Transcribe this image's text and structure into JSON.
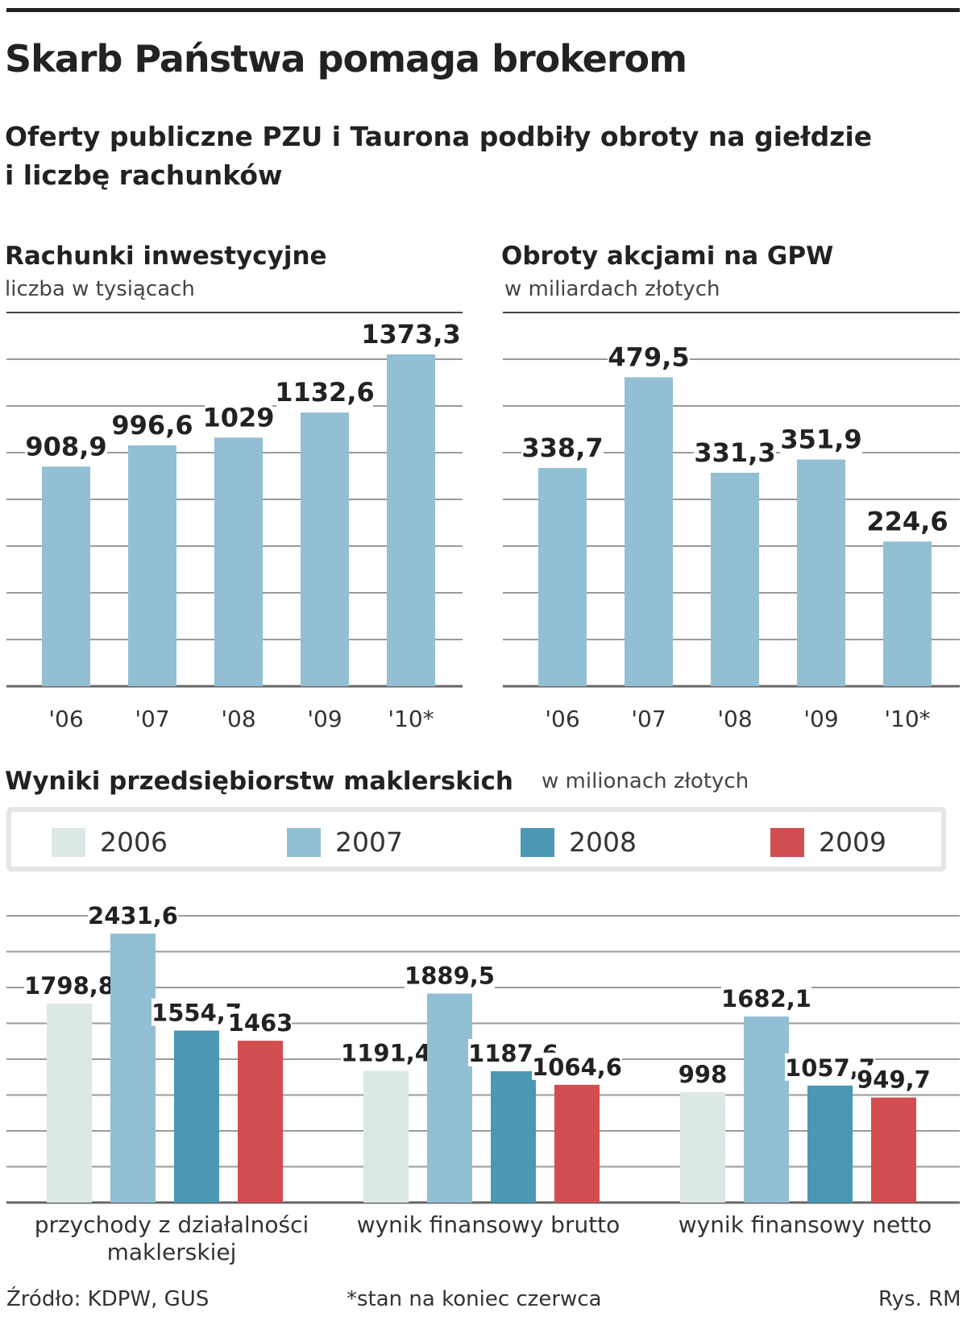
{
  "headline": "Skarb Państwa pomaga brokerom",
  "subtitle_line1": "Oferty publiczne PZU i Taurona podbiły obroty na giełdzie",
  "subtitle_line2": "i liczbę rachunków",
  "footer": {
    "source": "Źródło: KDPW, GUS",
    "note": "*stan na koniec czerwca",
    "credit": "Rys. RM"
  },
  "colors": {
    "bar": "#92bfd4",
    "grid": "#9a9a9a",
    "s2006": "#dce8e6",
    "s2007": "#92bfd4",
    "s2008": "#4a98b4",
    "s2009": "#d24d50"
  },
  "chart_data": [
    {
      "type": "bar",
      "title": "Rachunki inwestycyjne",
      "ylabel": "liczba w tysiącach",
      "categories": [
        "'06",
        "'07",
        "'08",
        "'09",
        "'10*"
      ],
      "values": [
        908.9,
        996.6,
        1029,
        1132.6,
        1373.3
      ],
      "value_labels": [
        "908,9",
        "996,6",
        "1029",
        "1132,6",
        "1373,3"
      ],
      "ylim": [
        0,
        1500
      ],
      "grid": true
    },
    {
      "type": "bar",
      "title": "Obroty akcjami na GPW",
      "ylabel": "w miliardach złotych",
      "categories": [
        "'06",
        "'07",
        "'08",
        "'09",
        "'10*"
      ],
      "values": [
        338.7,
        479.5,
        331.3,
        351.9,
        224.6
      ],
      "value_labels": [
        "338,7",
        "479,5",
        "331,3",
        "351,9",
        "224,6"
      ],
      "ylim": [
        0,
        525
      ],
      "grid": true
    },
    {
      "type": "bar",
      "title": "Wyniki przedsiębiorstw maklerskich",
      "ylabel": "w milionach złotych",
      "categories": [
        "przychody z działalności maklerskiej",
        "wynik finansowy brutto",
        "wynik finansowy netto"
      ],
      "category_lines": [
        [
          "przychody z działalności",
          "maklerskiej"
        ],
        [
          "wynik finansowy brutto"
        ],
        [
          "wynik finansowy netto"
        ]
      ],
      "series": [
        {
          "name": "2006",
          "values": [
            1798.8,
            1191.4,
            998
          ],
          "labels": [
            "1798,8",
            "1191,4",
            "998"
          ]
        },
        {
          "name": "2007",
          "values": [
            2431.6,
            1889.5,
            1682.1
          ],
          "labels": [
            "2431,6",
            "1889,5",
            "1682,1"
          ]
        },
        {
          "name": "2008",
          "values": [
            1554.7,
            1187.6,
            1057.7
          ],
          "labels": [
            "1554,7",
            "1187,6",
            "1057,7"
          ]
        },
        {
          "name": "2009",
          "values": [
            1463,
            1064.6,
            949.7
          ],
          "labels": [
            "1463",
            "1064,6",
            "949,7"
          ]
        }
      ],
      "ylim": [
        0,
        2600
      ],
      "legend": "top",
      "grid": true
    }
  ]
}
